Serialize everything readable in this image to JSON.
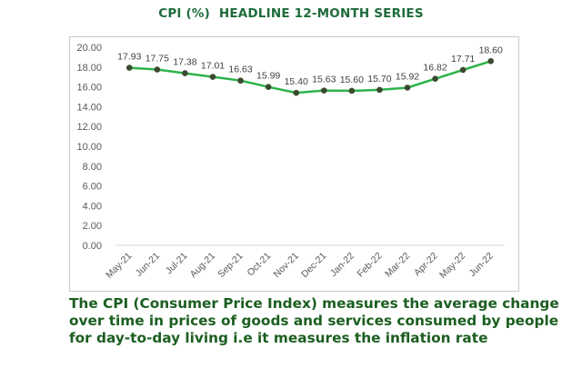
{
  "title": "CPI (%)  HEADLINE 12-MONTH SERIES",
  "caption_lines": [
    "The CPI (Consumer Price Index) measures the average change",
    "over time in prices of goods and services consumed by people",
    "for day-to-day living i.e it measures the inflation rate"
  ],
  "colors": {
    "line": "#2db34a",
    "marker": "#3a4a30",
    "title": "#1e6b3a",
    "caption": "#1b5e20",
    "axis_text": "#595959",
    "gridline": "#d9d9d9"
  },
  "chart_data": {
    "type": "line",
    "title": "CPI (%)  HEADLINE 12-MONTH SERIES",
    "xlabel": "",
    "ylabel": "",
    "categories": [
      "May-21",
      "Jun-21",
      "Jul-21",
      "Aug-21",
      "Sep-21",
      "Oct-21",
      "Nov-21",
      "Dec-21",
      "Jan-22",
      "Feb-22",
      "Mar-22",
      "Apr-22",
      "May-22",
      "Jun-22"
    ],
    "values": [
      17.93,
      17.75,
      17.38,
      17.01,
      16.63,
      15.99,
      15.4,
      15.63,
      15.6,
      15.7,
      15.92,
      16.82,
      17.71,
      18.6
    ],
    "data_labels": [
      "17.93",
      "17.75",
      "17.38",
      "17.01",
      "16.63",
      "15.99",
      "15.40",
      "15.63",
      "15.60",
      "15.70",
      "15.92",
      "16.82",
      "17.71",
      "18.60"
    ],
    "ylim": [
      0,
      20
    ],
    "yticks": [
      "0.00",
      "2.00",
      "4.00",
      "6.00",
      "8.00",
      "10.00",
      "12.00",
      "14.00",
      "16.00",
      "18.00",
      "20.00"
    ],
    "grid": false,
    "legend": "none",
    "markers": true
  }
}
